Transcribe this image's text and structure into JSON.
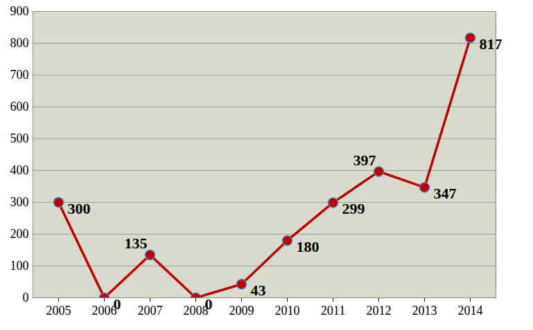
{
  "chart_data": {
    "type": "line",
    "categories": [
      "2005",
      "2006",
      "2007",
      "2008",
      "2009",
      "2010",
      "2011",
      "2012",
      "2013",
      "2014"
    ],
    "values": [
      300,
      0,
      135,
      0,
      43,
      180,
      299,
      397,
      347,
      817
    ],
    "color": "#c00000",
    "marker": "circle",
    "ylim": [
      0,
      900
    ],
    "yticks": [
      0,
      100,
      200,
      300,
      400,
      500,
      600,
      700,
      800,
      900
    ],
    "grid": true,
    "data_labels": true
  }
}
